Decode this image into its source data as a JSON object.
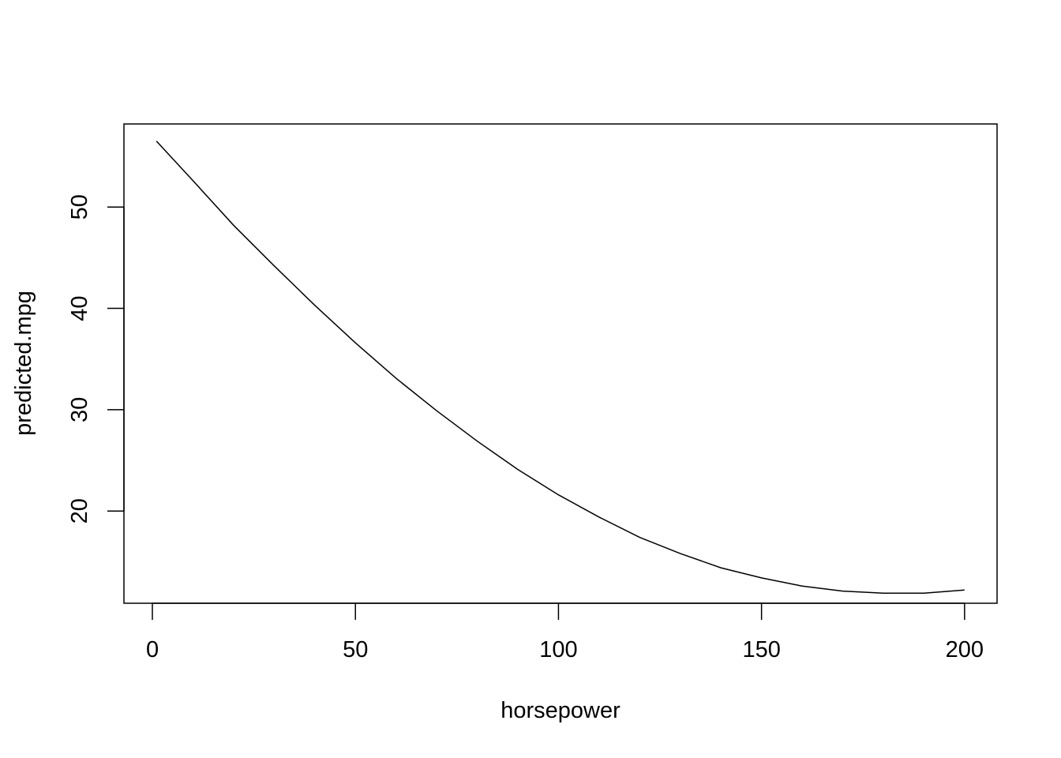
{
  "chart_data": {
    "type": "line",
    "title": "",
    "xlabel": "horsepower",
    "ylabel": "predicted.mpg",
    "xlim": [
      -7,
      208
    ],
    "ylim": [
      10.9,
      58.2
    ],
    "x_ticks": [
      0,
      50,
      100,
      150,
      200
    ],
    "y_ticks": [
      20,
      30,
      40,
      50
    ],
    "grid": false,
    "legend": "none",
    "line_color": "#000000",
    "series": [
      {
        "x": [
          1,
          10,
          20,
          30,
          40,
          50,
          60,
          70,
          80,
          90,
          100,
          110,
          120,
          130,
          140,
          150,
          160,
          170,
          180,
          190,
          200
        ],
        "values": [
          56.5,
          52.6,
          48.2,
          44.2,
          40.3,
          36.6,
          33.1,
          29.9,
          26.9,
          24.1,
          21.6,
          19.4,
          17.4,
          15.8,
          14.4,
          13.4,
          12.6,
          12.1,
          11.9,
          11.9,
          12.2
        ]
      }
    ]
  }
}
